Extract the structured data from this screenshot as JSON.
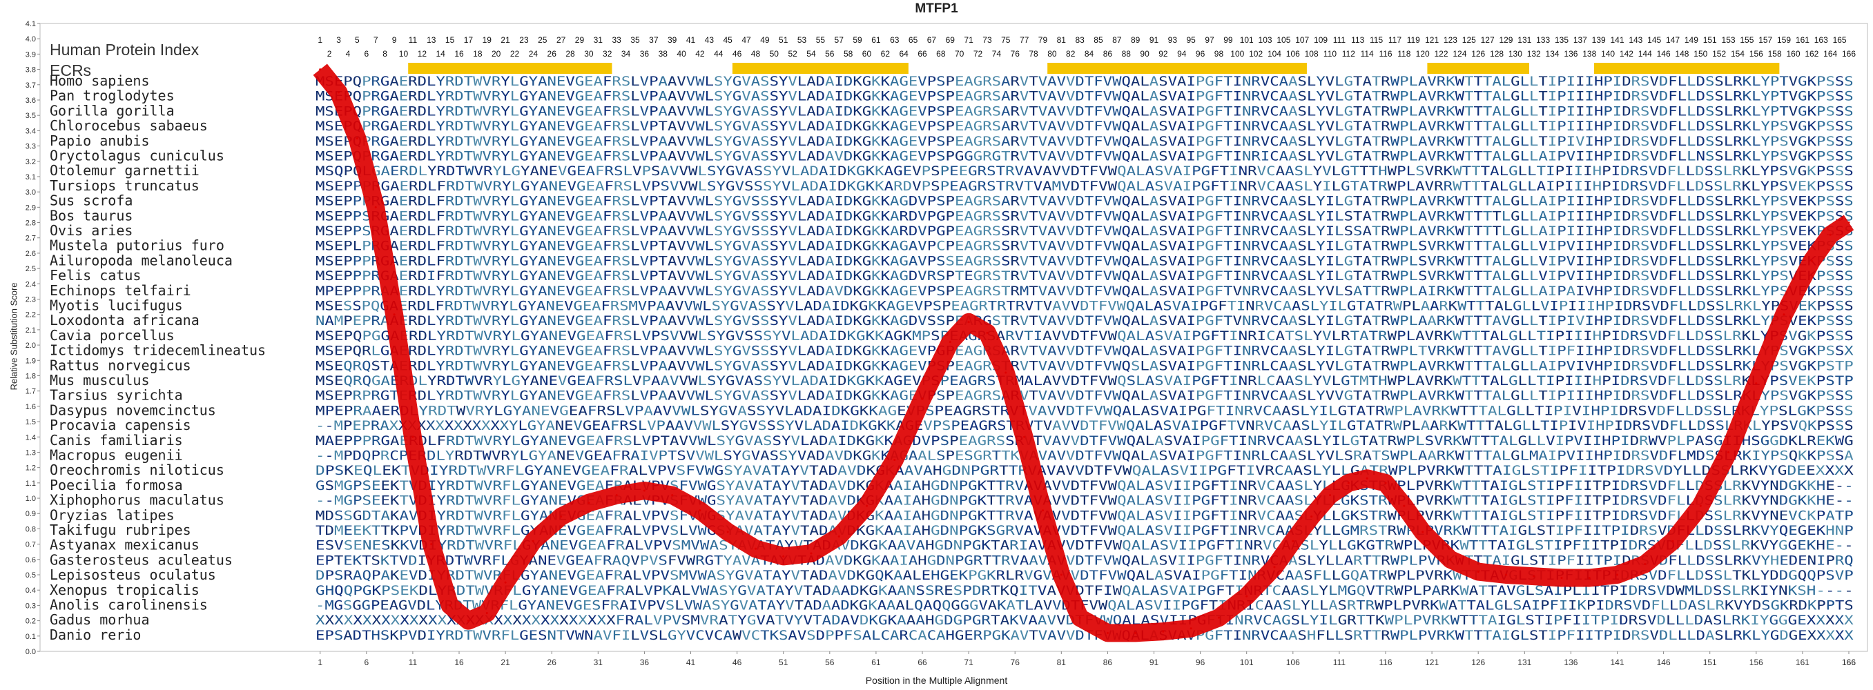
{
  "chart_data": {
    "type": "line",
    "title": "MTFP1",
    "xlabel": "Position in the Multiple Alignment",
    "ylabel": "Relative Substitution Score",
    "ylim": [
      0,
      4.1
    ],
    "xlim": [
      1,
      166
    ],
    "index_label": "Human Protein Index",
    "ecr_label": "ECRs",
    "ecrs": [
      [
        11,
        32
      ],
      [
        46,
        64
      ],
      [
        80,
        107
      ],
      [
        121,
        131
      ],
      [
        139,
        158
      ]
    ],
    "yticks": [
      "0.0",
      "0.1",
      "0.2",
      "0.3",
      "0.4",
      "0.5",
      "0.6",
      "0.7",
      "0.8",
      "0.9",
      "1.0",
      "1.1",
      "1.2",
      "1.3",
      "1.4",
      "1.5",
      "1.6",
      "1.7",
      "1.8",
      "1.9",
      "2.0",
      "2.1",
      "2.2",
      "2.3",
      "2.4",
      "2.5",
      "2.6",
      "2.7",
      "2.8",
      "2.9",
      "3.0",
      "3.1",
      "3.2",
      "3.3",
      "3.4",
      "3.5",
      "3.6",
      "3.7",
      "3.8",
      "3.9",
      "4.0",
      "4.1"
    ],
    "series": [
      {
        "x": [
          1,
          3,
          5,
          7,
          9,
          11,
          13,
          15,
          17,
          19,
          21,
          24,
          27,
          30,
          33,
          36,
          39,
          42,
          45,
          48,
          51,
          54,
          57,
          60,
          63,
          66,
          69,
          71,
          73,
          75,
          77,
          79,
          81,
          83,
          86,
          89,
          92,
          95,
          98,
          101,
          104,
          106,
          108,
          110,
          112,
          114,
          116,
          118,
          120,
          123,
          126,
          129,
          132,
          135,
          138,
          141,
          144,
          147,
          150,
          153,
          156,
          159,
          162,
          164,
          166
        ],
        "values": [
          3.8,
          3.65,
          3.35,
          2.9,
          2.2,
          1.4,
          0.7,
          0.3,
          0.2,
          0.25,
          0.45,
          0.72,
          0.88,
          0.97,
          1.02,
          1.05,
          1.02,
          0.92,
          0.78,
          0.67,
          0.62,
          0.64,
          0.75,
          0.95,
          1.25,
          1.65,
          2.02,
          2.15,
          2.08,
          1.82,
          1.4,
          0.92,
          0.5,
          0.22,
          0.12,
          0.12,
          0.13,
          0.15,
          0.22,
          0.36,
          0.55,
          0.72,
          0.88,
          1.02,
          1.1,
          1.13,
          1.1,
          0.95,
          0.78,
          0.6,
          0.52,
          0.5,
          0.49,
          0.48,
          0.48,
          0.5,
          0.57,
          0.72,
          0.95,
          1.3,
          1.75,
          2.2,
          2.55,
          2.72,
          2.8
        ]
      }
    ],
    "color": "#dd0000",
    "ecr_color": "#f5c400",
    "alignment": [
      {
        "species": "Homo sapiens",
        "seq": "MSEPQPRGAERDLYRDTWVRYLGYANEVGEAFRSLVPAAVVWLSYGVASSYVLADAIDKGKKAGEVPSPEAGRSARVTVAVVDTFVWQALASVAIPGFTINRVCAASLYVLGTATRWPLAVRKWTTTALGLLTIPIIIHPIDRSVDFLLDSSLRKLYPTVGKPSSS"
      },
      {
        "species": "Pan troglodytes",
        "seq": "MSEPQPRGAERDLYRDTWVRYLGYANEVGEAFRSLVPAAVVWLSYGVASSYVLADAIDKGKKAGEVPSPEAGRSARVTVAVVDTFVWQALASVAIPGFTINRVCAASLYVLGTATRWPLAVRKWTTTALGLLTIPIIIHPIDRSVDFLLDSSLRKLYPTVGKPSSS"
      },
      {
        "species": "Gorilla gorilla",
        "seq": "MSEPQPRGAERDLYRDTWVRYLGYANEVGEAFRSLVPAAVVWLSYGVASSYVLADAIDKGKKAGEVPSPEAGRSARVTVAVVDTFVWQALASVAIPGFTINRVCAASLYVLGTATRWPLAVRKWTTTALGLLTIPIIIHPIDRSVDFLLDSSLRKLYPTVGKPSSS"
      },
      {
        "species": "Chlorocebus sabaeus",
        "seq": "MSEPQPRGAERDLYRDTWVRYLGYANEVGEAFRSLVPTAVVWLSYGVASSYVLADAIDKGKKAGEVPSPEAGRSARVTVAVVDTFVWQALASVAIPGFTINRVCAASLYVLGTATRWPLAVRKWTTTALGLLTIPIIIHPIDRSVDFLLDSSLRKLYPSVGKPSSS"
      },
      {
        "species": "Papio anubis",
        "seq": "MSEPQPRGAERDLYRDTWVRYLGYANEVGEAFRSLVPAAVVWLSYGVASSYVLADAIDKGKKAGEVPSPEAGRSARVTVAVVDTFVWQALASVAIPGFTINRVCAASLYVLGTATRWPLAVRKWTTTALGLLTIPIVIHPIDRSVDFLLDSSLRKLYPSVGKPSSS"
      },
      {
        "species": "Oryctolagus cuniculus",
        "seq": "MSEPQPRGAERDLYRDTWVRYLGYANEVGEAFRSLVPAAVVWLSYGVASSYVLADAVDKGKKAGEVPSPGGGRGTRVTVAVVDTFVWQALASVAIPGFTINRICAASLYVLGTATRWPLAVRKWTTTALGLLAIPVIIHPIDRSVDFLLNSSLRKLYPSVGKPSSS"
      },
      {
        "species": "Otolemur garnettii",
        "seq": "MSQPQLGAERDLYRDTWVRYLGYANEVGEAFRSLVPSAVVWLSYGVASSYVLADAIDKGKKAGEVPSPEEGRSTRVAVAVVDTFVWQALASVAIPGFTINRVCAASLYVLGTTTHWPLSVRKWTTTALGLLTIPIIIHPIDRSVDFLLDSSLRKLYPSVGKPSSS"
      },
      {
        "species": "Tursiops truncatus",
        "seq": "MSEPPPRGAERDLFRDTWVRYLGYANEVGEAFRSLVPSVVWLSYGVSSSYVLADAIDKGKKARDVPSPEAGRSTRVTVAMVDTFVWQALASVAIPGFTINRVCAASLYILGTATRWPLAVRRWTTTALGLLAIPIIIHPIDRSVDFLLDSSLRKLYPSVEKPSSS"
      },
      {
        "species": "Sus scrofa",
        "seq": "MSEPPPRGAERDLFRDTWVRYLGYANEVGEAFRSLVPTAVVWLSYGVSSSYVLADAIDKGKKAGDVPSPEAGRSARVTVAVVDTFVWQALASVAIPGFTINRVCAASLYILGTATRWPLAVRKWTTTALGLLAIPIIIHPIDRSVDFLLDSSLRKLYPSVEKPSSS"
      },
      {
        "species": "Bos taurus",
        "seq": "MSEPPSRGAERDLFRDTWVRYLGYANEVGEAFRSLVPAAVVWLSYGVSSSYVLADAIDKGKKARDVPGPEAGRSSRVTVAVVDTFVWQALASVAIPGFTINRVCAASLYILSTATRWPLAVRKWTTTTLGLLAIPIIIHPIDRSVDFLLDSSLRKLYPSVEKPSSS"
      },
      {
        "species": "Ovis aries",
        "seq": "MSEPPSRGAERDLFRDTWVRYLGYANEVGEAFRSLVPAAVVWLSYGVSSSYVLADAIDKGKKARDVPGPEAGRSSRVTVAVVDTFVWQALASVAIPGFTINRVCAASLYILSSATRWPLAVRKWTTTTLGLLAIPIIIHPIDRSVDFLLDSSLRKLYPSVEKPSSS"
      },
      {
        "species": "Mustela putorius furo",
        "seq": "MSEPLPRGAERDLFRDTWVRYLGYANEVGEAFRSLVPTAVVWLSYGVASSYVLADAIDKGKKAGAVPCPEAGRSSRVTVAVVDTFVWQALASVAIPGFTINRVCAASLYILGTATRWPLSVRKWTTTALGLLVIPVIIHPIDRSVDFLLDSSLRKLYPSVEKPSSS"
      },
      {
        "species": "Ailuropoda melanoleuca",
        "seq": "MSEPPPRGAERDLFRDTWVRYLGYANEVGEAFRSLVPTAVVWLSYGVASSYVLADAIDKGKKAGAVPSSEAGRSSRVTVAVVDTFVWQALASVAIPGFTINRVCAASLYILGTATRWPLSVRKWTTTALGLLVIPVIIHPIDRSVDFLLDSSLRKLYPSVEKPSSS"
      },
      {
        "species": "Felis catus",
        "seq": "MSEPPPRGAERDIFRDTWVRYLGYANEVGEAFRSLVPTAVVWLSYGVASSYVLADAIDKGKKAGDVRSPTEGRSTRVTVAVVDTFVWQALASVAIPGFTINRVCAASLYILGTATRWPLSVRKWTTTALGLLVIPVIIHPIDRSVDFLLDSSLRKLYPSVEKPSSS"
      },
      {
        "species": "Echinops telfairi",
        "seq": "MPEPPPRAAERDLYRDTWVRYLGYANEVGEAFRSLVPAAVVWLSYGVASSYVLADAVDKGKKAGEVPSPEAGRSTRMTVAVVDTFVWQALASVAIPGFTVNRVCAASLYVLSATTRWPLAIRKWTTTALGLLAIPAIVHPIDRSVDFLLDSSLRKLYPSVEKPSSS"
      },
      {
        "species": "Myotis lucifugus",
        "seq": "MSESSPQGAERDLFRDTWVRYLGYANEVGEAFRSMVPAAVVWLSYGVASSYVLADAIDKGKKAGEVPSPEAGRTRTRVTVAVVDTFVWQALASVAIPGFTINRVCAASLYILGTATRWPLAARKWTTTALGLLVIPIIIHPIDRSVDFLLDSSLRKLYPSVEKPSSS"
      },
      {
        "species": "Loxodonta africana",
        "seq": "NAMPEPRAAERDLYRDTWVRYLGYANEVGEAFRSLVPAAVVWLSYGVSSSYVLADAIDKGKKAGDVSSPEARGSTRVTVAVVDTFVWQALASVAIPGFTVNRVCAASLYILGTATRWPLAARKWTTTAVGLLTIPIVIHPIDRSVDFLLDSSLRKLYPSVEKPSSS"
      },
      {
        "species": "Cavia porcellus",
        "seq": "MSEPQPGGAERDLYRDTWVRYLGYANEVGEAFRSLVPSVVWLSYGVSSSYVLADAIDKGKKAGKMPSPEAGRSARVTIAVVDTFVWQALASVAIPGFTINRICATSLYVLRTATRWPLAVRKWTTTALGLLTIPIIIHPIDRSVDFLLDSSLRKLYPSVGKPSSS"
      },
      {
        "species": "Ictidomys tridecemlineatus",
        "seq": "MSEPQRLGAERDLYRDTWVRYLGYANEVGEAFRSLVPAAVVWLSYGVSSSYVLADAIDKGKKAGEVPGPEAGRSARVTVAVVDTFVWQALASVAIPGFTINRVCAASLYILGTATRWPLTVRKWTTTAVGLLTIPFIIHPIDRSVDFLLDSSLRKLYPSVGKPSSX"
      },
      {
        "species": "Rattus norvegicus",
        "seq": "MSEQRQSTAERDLYRDTWVRYLGYANEVGEAFRSLVPAAVVWLSYGVASSYVLADAIDKGKKAGEVPSPEAGRSTRVTVAVVDTFVWQSLASVAIPGFTINRLCAASLYVLGTATRWPLAVRKWTTTALGLLAIPVIVHPIDRSVDFLLDSSLRKLYPSVGKPSTP"
      },
      {
        "species": "Mus musculus",
        "seq": "MSEQRQGAERDLYRDTWVRYLGYANEVGEAFRSLVPAAVVWLSYGVASSYVLADAIDKGKKAGEVPSPEAGRSTRMALAVVDTFVWQSLASVAIPGFTINRLCAASLYVLGTMTHWPLAVRKWTTTALGLLTIPIIIHPIDRSVDFLLDSSLRKLYPSVEKPSTP"
      },
      {
        "species": "Tarsius syrichta",
        "seq": "MSEPRPRGTERDLYRDTWVRYLGYANEVGEAFRSLVPAAVVWLSYGVASSYVLADAIDKGKKAGEVPSPEAGRSARVTVAVVDTFVWQALASVAIPGFTINRVCAASLYVVGTATRWPLAVRKWTTTALGLLTIPIIIHPIDRSVDFLLDSSLRKLYPSVGKPSSS"
      },
      {
        "species": "Dasypus novemcinctus",
        "seq": "MPEPRAAERDLYRDTWVRYLGYANEVGEAFRSLVPAAVVWLSYGVASSYVLADAIDKGKKAGEVPSPEAGRSTRVTVAVVDTFVWQALASVAIPGFTINRVCAASLYILGTATRWPLAVRKWTTTALGLLTIPIVIHPIDRSVDFLLDSSLRKLYPSLGKPSSS"
      },
      {
        "species": "Procavia capensis",
        "seq": "--MPEPRAXXXXXXXXXXXXXYLGYANEVGEAFRSLVPAAVVWLSYGVSSSYVLADAIDKGKKAGEVPSPEAGRSTRVTVAVVDTFVWQALASVAIPGFTVNRVCAASLYILGTATRWPLAARKWTTTALGLLTIPIVIHPIDRSVDFLLDSSLRKLYPSVQKPSSS"
      },
      {
        "species": "Canis familiaris",
        "seq": "MAEPPPRGAERDLFRDTWVRYLGYANEVGEAFRSLVPTAVVWLSYGVASSYVLADAIDKGKKAGDVPSPEAGRSSRVTVAVVDTFVWQALASVAIPGFTINRVCAASLYILGTATRWPLSVRKWTTTALGLLVIPVIIHPIDRWVPLPASGIIHSGGDKLREKWG"
      },
      {
        "species": "Macropus eugenii",
        "seq": "--MPDQPRCPERDLYRDTWVRYLGYANEVGEAFRAIVPTSVVWLSYGVASSYVADAVDKGKKAGAALSPESGRTTKVAVAVVDTFVWQALASVAIPGFTINRLCAASLYVLSRATSWPLAARKWTTTALGLMAIPVIIHPIDRSVDFLMDSSLRKIYPSQKKPSSA"
      },
      {
        "species": "Oreochromis niloticus",
        "seq": "DPSKEQLEKTVDIYRDTWVRFLGYANEVGEAFRALVPVSFVWGSYAVATAYVTADAVDKGKAAVAHGDNPGRTTRVAVAVVDTFVWQALASVIIPGFTIVRCAASLYLLGATRWPLPVRKWTTTAIGLSTIPFIITPIDRSVDYLLDSSLRKVYGDEEXXXX"
      },
      {
        "species": "Poecilia formosa",
        "seq": "GSMGPSEEKTVDIYRDTWVRFLGYANEVGEAFRALVPVSFVWGSYAVATAYVTADAVDKGKAAIAHGDNPGKTTRVAVAVVDTFVWQALASVIIPGFTINRVCAASLYLLGKSTRWPLPVRKWTTTAIGLSTIPFIITPIDRSVDFLLDSSLRKVYNDGKKHE--"
      },
      {
        "species": "Xiphophorus maculatus",
        "seq": "--MGPSEEKTVDIYRDTWVRFLGYANEVGEAFRALVPVSFVWGSYAVATAYVTADAVDKGKAAIAHGDNPGKTTRVAVAVVDTFVWQALASVIIPGFTINRVCAASLYLLGKSTRWPLPVRKWTTTAIGLSTIPFIITPIDRSVDFLLDSSLRKVYNDGKKHE--"
      },
      {
        "species": "Oryzias latipes",
        "seq": "MDSSGDTAKAVDIYRDTWVRFLGYANEVGEAFRALVPVSFVWGSYAVATAYVTADAVDKGKAAIAHGDNPGKTTRVAVAVVDTFVWQALASVIIPGFTINRVCAASLYLLGKSTRWPLPVRKWTTTAIGLSTIPFIITPIDRSVDFLLDSSLRKVYNEVCKPATP"
      },
      {
        "species": "Takifugu rubripes",
        "seq": "TDMEEKTTKPVDIYRDTWVRFLGYANEVGEAFRALVPVSLVWGSYAVATAYVTADAVDKGKAAIAHGDNPGKSGRVAVAVVDTFVWQALASVIIPGFTINRVCAASLYLLGMRSTRWPLPVRKWTTTAIGLSTIPFIITPIDRSVDFLLDSSLRKVYQEGEKHNP"
      },
      {
        "species": "Astyanax mexicanus",
        "seq": "ESVSENESKKVDIYRDTWVRFLGYANEVGEAFRALVPVSMVWASYAVATAYVTADAVDKGKAAVAHGDNPGKTARIAVAVVDTFVWQALASVIIPGFTINRVCAASLYLLGKGTRWPLPVRKWTTTAIGLSTIPFIITPIDRSVDFLLDSSLRKVYGGEKHE--"
      },
      {
        "species": "Gasterosteus aculeatus",
        "seq": "EPTEKTSKTVDIYRDTWVRFLGYANEVGEAFRAQVPVSFVWRGTYAVATAYVTADAVDKGKAAIAHGDNPGRTTRVAAVAVVDTFVWQALASVIIPGFTINRVCAASLYLLARTTRWPLPVRKWTTTAIGLSTIPFIITPIDRSVDFLLDSSLRKVYHEDENIPRQ"
      },
      {
        "species": "Lepisosteus oculatus",
        "seq": "DPSRAQPAKEVDIYRDTWVRFLGYANEVGEAFRALVPVSMVWASYGVATAYVTADAVDKGQKAALEHGEKPGKRLRVGVAVVDTFVWQALASVAIPGFTINRVCAASFLLGQATRWPLPVRKWTTTAVGLSTIPFIITPIDRSVDFLLDSSLTKLYDDGQQPSVP"
      },
      {
        "species": "Xenopus tropicalis",
        "seq": "GHQQPGKPSEKDLYRDTWVRFLGYANEVGEAFRALVPKALVWASYGVATAYVTADAADKGKAANSSRESPDRTKQITVAVVDTFIWQALASVAIPGFTINRTCAASLYLMGQVTRWPLPARKWATTAVGLSAIPLIITPIDRSVDWMLDSSLRKIYNKSH----"
      },
      {
        "species": "Anolis carolinensis",
        "seq": "-MGSGGPEAGVDLYRDTWVRFLGYANEVGESFRAIVPVSLVWASYGVATAYVTADAADKGKAAALQAQQGGGVAKATLAVVDTFVWQALASVIIPGFTINRICAASLYLLASRTRWPLPVRKWATTALGLSAIPFIIKPIDRSVDFLLDASLRKVYDSGKRDKPPTS"
      },
      {
        "species": "Gadus morhua",
        "seq": "XXXXXXXXXXXXXXXXXXXXXXXXXXXXXXXXFRALVPVSMVRATYGVATVYVTADAVDKGKAAAHGDGPGRTAKVAAVVDTFVWQALASVIIPGFTINRVCAGSLYILGRTTKWPLPVRKWTTTAIGLSTIPFIITPIDRSVDLLLDASLRKIYGGGEXXXXX"
      },
      {
        "species": "Danio rerio",
        "seq": "EPSADTHSKPVDIYRDTWVRFLGESNTVWNAVFILVSLGYVCVCAWVCTKSAVSDPPFSALCARCACAHGERPGKAVTVAVVDTFVWQALASVAVPGFTINRVCAASHFLLSRTTRWPLPVRKWTTTAIGLSTIPFIITPIDRSVDLLLDASLRKLYGDGEXXXXX"
      }
    ]
  }
}
